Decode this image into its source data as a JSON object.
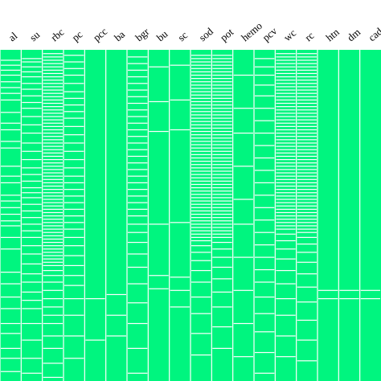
{
  "chart_data": {
    "type": "heatmap",
    "title": "",
    "xlabel": "",
    "ylabel": "",
    "colors": {
      "present": "#00f57f",
      "missing": "#ffffff"
    },
    "columns": [
      {
        "label": "al",
        "missing": [
          12,
          18,
          24,
          30,
          38,
          45,
          52,
          60,
          75,
          88,
          96,
          110,
          118,
          140,
          152,
          160,
          175,
          182,
          190,
          198,
          206,
          212,
          226,
          240,
          268,
          282,
          298,
          312,
          330,
          342,
          360,
          372,
          388,
          400
        ]
      },
      {
        "label": "su",
        "missing": [
          10,
          14,
          20,
          26,
          32,
          40,
          47,
          55,
          63,
          70,
          80,
          90,
          100,
          112,
          122,
          132,
          142,
          150,
          158,
          166,
          172,
          178,
          186,
          194,
          202,
          210,
          218,
          226,
          236,
          246,
          258,
          270,
          280,
          292,
          302,
          312,
          330,
          350,
          372,
          390
        ]
      },
      {
        "label": "rbc",
        "missing": [
          4,
          8,
          12,
          16,
          20,
          24,
          28,
          32,
          36,
          40,
          44,
          48,
          52,
          56,
          60,
          64,
          68,
          72,
          76,
          80,
          84,
          88,
          92,
          96,
          100,
          104,
          108,
          112,
          116,
          120,
          124,
          128,
          132,
          136,
          140,
          144,
          148,
          152,
          156,
          160,
          164,
          168,
          172,
          176,
          180,
          184,
          188,
          192,
          196,
          200,
          204,
          208,
          212,
          216,
          220,
          224,
          228,
          232,
          236,
          240,
          244,
          248,
          252,
          256,
          260,
          266,
          272,
          280,
          290,
          300,
          310,
          320,
          330,
          345,
          360,
          378,
          395
        ]
      },
      {
        "label": "pc",
        "missing": [
          6,
          14,
          22,
          30,
          40,
          50,
          58,
          66,
          74,
          82,
          92,
          102,
          112,
          122,
          132,
          142,
          152,
          160,
          168,
          176,
          184,
          192,
          200,
          208,
          216,
          226,
          236,
          248,
          260,
          272,
          284,
          300,
          320,
          345,
          372
        ]
      },
      {
        "label": "pcc",
        "missing": [
          300,
          350
        ]
      },
      {
        "label": "ba",
        "missing": [
          295,
          320,
          345
        ]
      },
      {
        "label": "bgr",
        "missing": [
          8,
          16,
          24,
          32,
          40,
          48,
          56,
          64,
          72,
          80,
          88,
          96,
          104,
          112,
          120,
          128,
          136,
          144,
          152,
          160,
          168,
          176,
          184,
          192,
          200,
          210,
          220,
          232,
          246,
          262,
          282,
          305,
          330,
          360,
          390
        ]
      },
      {
        "label": "bu",
        "missing": [
          20,
          62,
          98,
          210,
          272,
          288
        ]
      },
      {
        "label": "sc",
        "missing": [
          18,
          60,
          96,
          208,
          274,
          290,
          310
        ]
      },
      {
        "label": "sod",
        "missing": [
          6,
          10,
          14,
          18,
          22,
          26,
          30,
          34,
          38,
          42,
          46,
          50,
          54,
          58,
          62,
          66,
          70,
          74,
          78,
          82,
          86,
          90,
          94,
          98,
          102,
          106,
          110,
          114,
          118,
          122,
          126,
          130,
          134,
          138,
          142,
          146,
          150,
          154,
          158,
          162,
          166,
          170,
          174,
          178,
          182,
          186,
          190,
          194,
          198,
          202,
          206,
          210,
          214,
          218,
          222,
          226,
          230,
          236,
          244,
          254,
          266,
          280,
          298,
          318,
          342,
          368
        ]
      },
      {
        "label": "pot",
        "missing": [
          6,
          10,
          14,
          18,
          22,
          26,
          30,
          34,
          38,
          42,
          46,
          50,
          54,
          58,
          62,
          66,
          70,
          74,
          78,
          82,
          86,
          90,
          94,
          98,
          102,
          106,
          110,
          114,
          118,
          122,
          126,
          130,
          134,
          138,
          142,
          146,
          150,
          154,
          158,
          162,
          166,
          170,
          174,
          178,
          182,
          186,
          190,
          194,
          198,
          202,
          206,
          210,
          214,
          218,
          222,
          226,
          232,
          240,
          250,
          262,
          276,
          292,
          310,
          334,
          360
        ]
      },
      {
        "label": "hemo",
        "missing": [
          30,
          70,
          100,
          140,
          180,
          210,
          250,
          290,
          330,
          370
        ]
      },
      {
        "label": "pcv",
        "missing": [
          10,
          20,
          30,
          42,
          55,
          70,
          85,
          100,
          115,
          130,
          145,
          160,
          175,
          190,
          205,
          220,
          235,
          250,
          265,
          280,
          298,
          318,
          340,
          365,
          390
        ]
      },
      {
        "label": "wc",
        "missing": [
          4,
          8,
          12,
          16,
          20,
          24,
          28,
          32,
          36,
          40,
          44,
          48,
          52,
          56,
          60,
          64,
          68,
          72,
          76,
          80,
          84,
          88,
          92,
          96,
          100,
          104,
          108,
          112,
          116,
          120,
          124,
          128,
          132,
          136,
          140,
          144,
          148,
          152,
          156,
          160,
          164,
          168,
          172,
          176,
          180,
          184,
          188,
          192,
          196,
          200,
          204,
          208,
          212,
          216,
          222,
          230,
          240,
          252,
          266,
          282,
          300,
          320,
          345,
          370
        ]
      },
      {
        "label": "rc",
        "missing": [
          4,
          8,
          12,
          16,
          20,
          24,
          28,
          32,
          36,
          40,
          44,
          48,
          52,
          56,
          60,
          64,
          68,
          72,
          76,
          80,
          84,
          88,
          92,
          96,
          100,
          104,
          108,
          112,
          116,
          120,
          124,
          128,
          132,
          136,
          140,
          144,
          148,
          152,
          156,
          160,
          164,
          168,
          172,
          176,
          180,
          184,
          188,
          192,
          196,
          200,
          204,
          208,
          212,
          216,
          220,
          226,
          234,
          244,
          256,
          270,
          286,
          304,
          326,
          350,
          375
        ]
      },
      {
        "label": "htn",
        "missing": [
          290,
          300
        ]
      },
      {
        "label": "dm",
        "missing": [
          290,
          300
        ]
      },
      {
        "label": "cad",
        "missing": [
          290,
          300
        ]
      }
    ],
    "row_range": [
      0,
      400
    ]
  }
}
